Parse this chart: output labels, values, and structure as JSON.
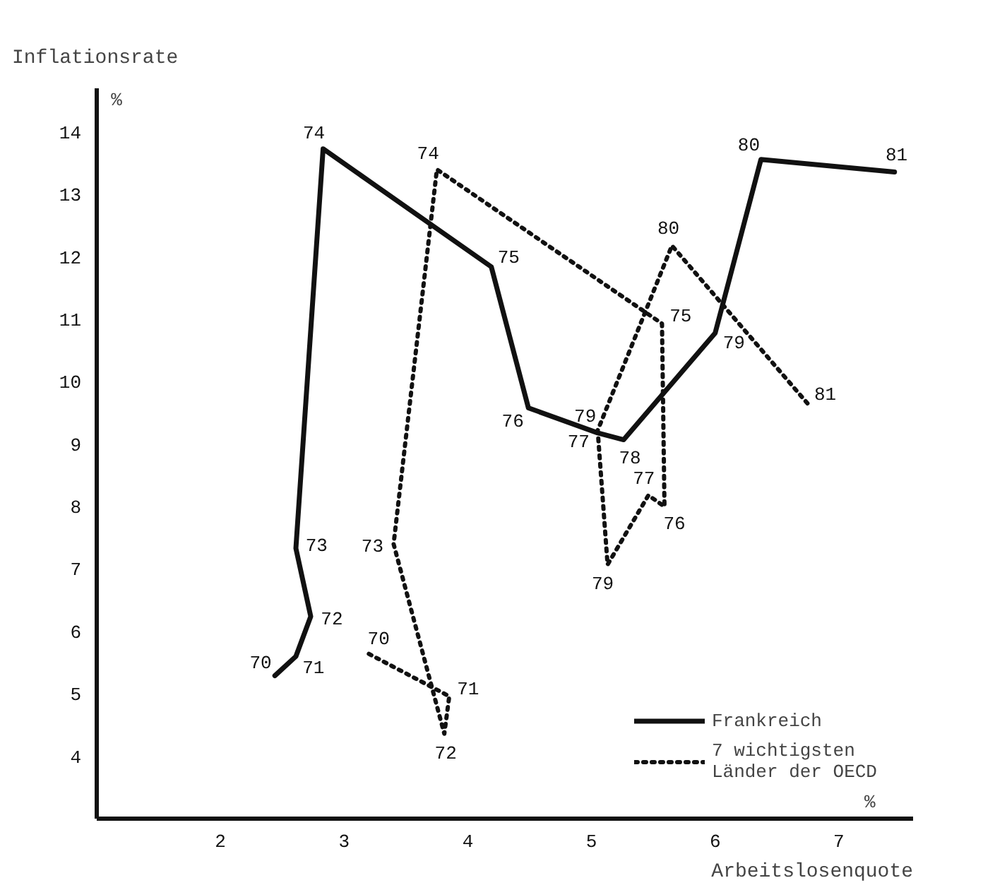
{
  "chart_data": {
    "type": "line",
    "ylabel": "Inflationsrate",
    "xlabel": "Arbeitslosenquote",
    "xlim": [
      1,
      7.6
    ],
    "ylim": [
      3,
      14.7
    ],
    "xticks": [
      2,
      3,
      4,
      5,
      6,
      7
    ],
    "yticks": [
      4,
      5,
      6,
      7,
      8,
      9,
      10,
      11,
      12,
      13,
      14
    ],
    "grid": false,
    "legend": "bottom right",
    "marker": "none",
    "series": [
      {
        "name": "Frankreich",
        "color": "#111111",
        "line_style": "solid",
        "x": [
          2.44,
          2.61,
          2.73,
          2.61,
          2.83,
          4.19,
          4.49,
          5.05,
          5.26,
          6.0,
          6.37,
          7.45
        ],
        "values": [
          5.29,
          5.6,
          6.24,
          7.33,
          13.73,
          11.84,
          9.58,
          9.18,
          9.07,
          10.78,
          13.56,
          13.36
        ]
      },
      {
        "name": "7 wichtigsten\nLänder der OECD",
        "color": "#111111",
        "line_style": "dotted",
        "x": [
          3.2,
          3.85,
          3.81,
          3.4,
          3.75,
          5.57,
          5.59,
          5.46,
          5.13,
          5.05,
          5.65,
          6.76
        ],
        "values": [
          5.64,
          4.96,
          4.36,
          7.4,
          13.4,
          10.93,
          8.0,
          8.18,
          7.07,
          9.22,
          12.18,
          9.62
        ]
      }
    ],
    "annotations": [
      "%",
      "%",
      {
        "text": "70",
        "x": 2.44,
        "y": 5.29
      },
      {
        "text": "71",
        "x": 2.61,
        "y": 5.6
      },
      {
        "text": "72",
        "x": 2.73,
        "y": 6.24
      },
      {
        "text": "73",
        "x": 2.61,
        "y": 7.33
      },
      {
        "text": "74",
        "x": 2.83,
        "y": 13.73
      },
      {
        "text": "75",
        "x": 4.19,
        "y": 11.84
      },
      {
        "text": "76",
        "x": 4.49,
        "y": 9.58
      },
      {
        "text": "77",
        "x": 5.05,
        "y": 9.18
      },
      {
        "text": "78",
        "x": 5.26,
        "y": 9.07
      },
      {
        "text": "79",
        "x": 6.0,
        "y": 10.78
      },
      {
        "text": "80",
        "x": 6.37,
        "y": 13.56
      },
      {
        "text": "81",
        "x": 7.45,
        "y": 13.36
      },
      {
        "text": "70",
        "x": 3.2,
        "y": 5.64
      },
      {
        "text": "71",
        "x": 3.85,
        "y": 4.96
      },
      {
        "text": "72",
        "x": 3.81,
        "y": 4.36
      },
      {
        "text": "73",
        "x": 3.4,
        "y": 7.4
      },
      {
        "text": "74",
        "x": 3.75,
        "y": 13.4
      },
      {
        "text": "75",
        "x": 5.57,
        "y": 10.93
      },
      {
        "text": "76",
        "x": 5.59,
        "y": 8.0
      },
      {
        "text": "77",
        "x": 5.46,
        "y": 8.18
      },
      {
        "text": "79",
        "x": 5.13,
        "y": 7.07
      },
      {
        "text": "79",
        "x": 5.05,
        "y": 9.22
      },
      {
        "text": "80",
        "x": 5.65,
        "y": 12.18
      },
      {
        "text": "81",
        "x": 6.76,
        "y": 9.62
      }
    ]
  }
}
